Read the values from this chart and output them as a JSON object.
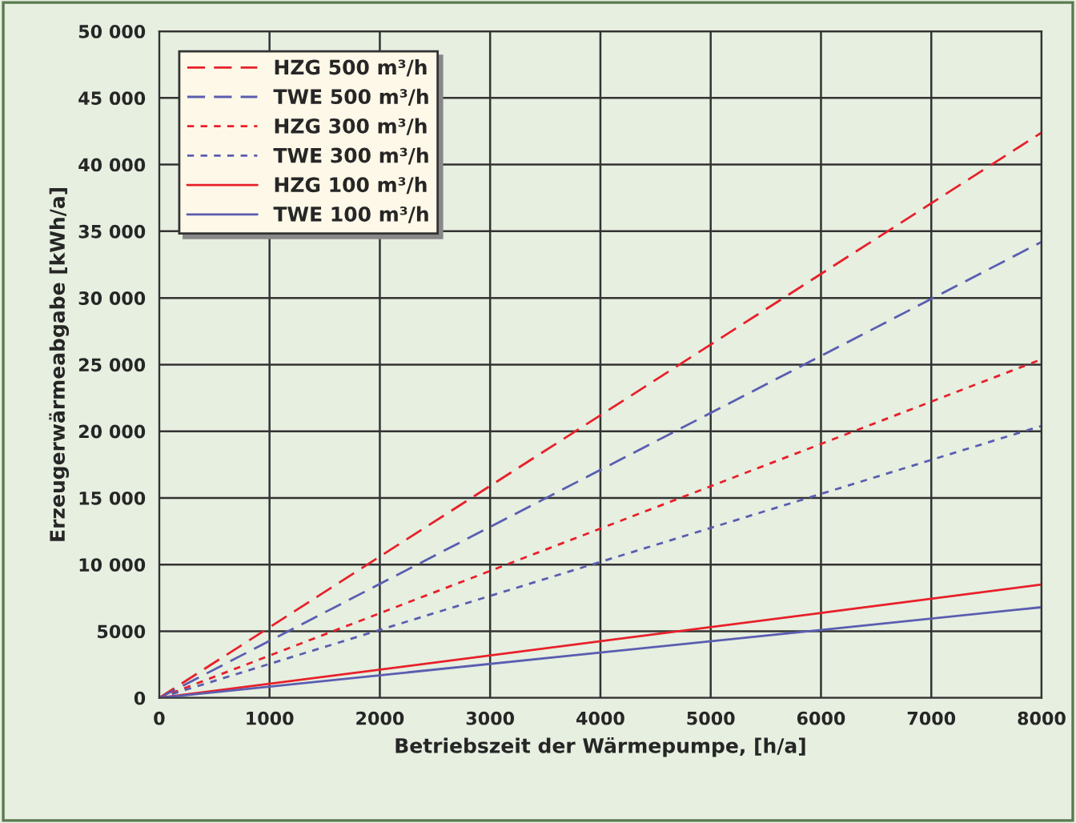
{
  "chart_data": {
    "type": "line",
    "xlabel": "Betriebszeit der Wärmepumpe, [h/a]",
    "ylabel": "Erzeugerwärmeabgabe [kWh/a]",
    "x": [
      0,
      8000
    ],
    "series": [
      {
        "name": "HZG 500 m³/h",
        "color": "#e8202a",
        "line_style": "dashed",
        "values": [
          0,
          42400
        ]
      },
      {
        "name": "TWE 500 m³/h",
        "color": "#5a5db0",
        "line_style": "dashed",
        "values": [
          0,
          34200
        ]
      },
      {
        "name": "HZG 300 m³/h",
        "color": "#e8202a",
        "line_style": "dotted",
        "values": [
          0,
          25400
        ]
      },
      {
        "name": "TWE 300 m³/h",
        "color": "#5a5db0",
        "line_style": "dotted",
        "values": [
          0,
          20400
        ]
      },
      {
        "name": "HZG 100 m³/h",
        "color": "#e8202a",
        "line_style": "solid",
        "values": [
          0,
          8500
        ]
      },
      {
        "name": "TWE 100 m³/h",
        "color": "#5a5db0",
        "line_style": "solid",
        "values": [
          0,
          6800
        ]
      }
    ],
    "xlim": [
      0,
      8000
    ],
    "xticks": [
      0,
      1000,
      2000,
      3000,
      4000,
      5000,
      6000,
      7000,
      8000
    ],
    "ylim": [
      0,
      50000
    ],
    "yticks": [
      0,
      5000,
      {
        "value": 10000,
        "label": "10 000"
      },
      {
        "value": 15000,
        "label": "15 000"
      },
      {
        "value": 20000,
        "label": "20 000"
      },
      {
        "value": 25000,
        "label": "25 000"
      },
      {
        "value": 30000,
        "label": "30 000"
      },
      {
        "value": 35000,
        "label": "35 000"
      },
      {
        "value": 40000,
        "label": "40 000"
      },
      {
        "value": 45000,
        "label": "45 000"
      },
      {
        "value": 50000,
        "label": "50 000"
      }
    ],
    "grid": true,
    "legend": "top left",
    "marker": "none"
  }
}
